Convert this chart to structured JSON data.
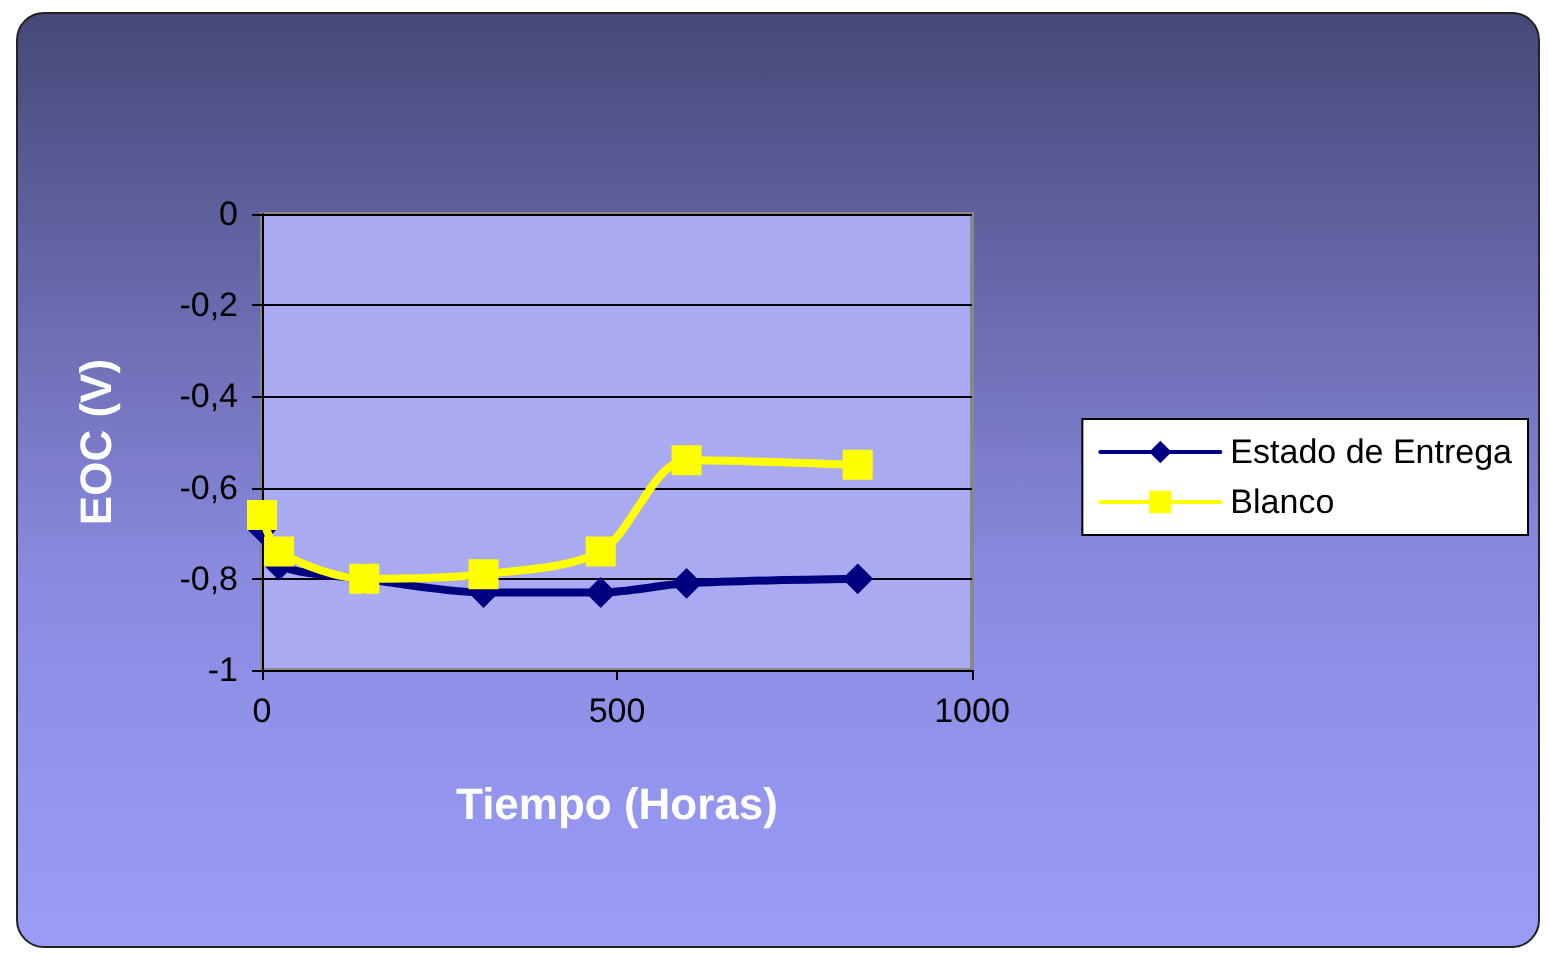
{
  "chart_data": {
    "type": "line",
    "xlabel": "Tiempo (Horas)",
    "ylabel": "EOC (V)",
    "x": [
      0,
      24,
      144,
      312,
      477,
      598,
      839
    ],
    "series": [
      {
        "name": "Estado de Entrega",
        "color": "#000080",
        "marker": "diamond",
        "values": [
          -0.69,
          -0.77,
          -0.8,
          -0.83,
          -0.83,
          -0.81,
          -0.8
        ]
      },
      {
        "name": "Blanco",
        "color": "#ffff00",
        "marker": "square",
        "values": [
          -0.66,
          -0.74,
          -0.8,
          -0.79,
          -0.74,
          -0.54,
          -0.55
        ]
      }
    ],
    "xlim": [
      0,
      1000
    ],
    "xticks": [
      0,
      500,
      1000
    ],
    "ylim": [
      -1,
      0
    ],
    "yticks": [
      {
        "value": -1,
        "label": "-1"
      },
      {
        "value": -0.8,
        "label": "-0,8"
      },
      {
        "value": -0.6,
        "label": "-0,6"
      },
      {
        "value": -0.4,
        "label": "-0,4"
      },
      {
        "value": -0.2,
        "label": "-0,2"
      },
      {
        "value": 0,
        "label": "0"
      }
    ],
    "grid": "y",
    "legend": "right"
  }
}
